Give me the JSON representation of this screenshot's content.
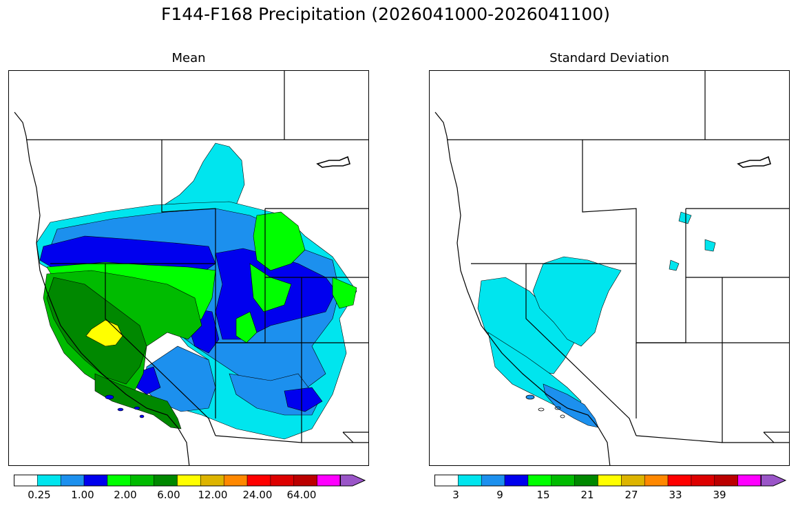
{
  "figure": {
    "title": "F144-F168 Precipitation (2026041000-2026041100)"
  },
  "panels": [
    {
      "title": "Mean",
      "colorbar": {
        "colors": [
          "#ffffff",
          "#00e5ee",
          "#1c90ee",
          "#0000ee",
          "#00ff00",
          "#00bb00",
          "#008800",
          "#ffff00",
          "#ddb400",
          "#ff8800",
          "#ff0000",
          "#dd0000",
          "#bb0000",
          "#ff00ff",
          "#9a55c8"
        ],
        "tick_labels": [
          "0.25",
          "1.00",
          "2.00",
          "6.00",
          "12.00",
          "24.00",
          "64.00"
        ]
      }
    },
    {
      "title": "Standard Deviation",
      "colorbar": {
        "colors": [
          "#ffffff",
          "#00e5ee",
          "#1c90ee",
          "#0000ee",
          "#00ff00",
          "#00bb00",
          "#008800",
          "#ffff00",
          "#ddb400",
          "#ff8800",
          "#ff0000",
          "#dd0000",
          "#bb0000",
          "#ff00ff",
          "#9a55c8"
        ],
        "tick_labels": [
          "3",
          "9",
          "15",
          "21",
          "27",
          "33",
          "39"
        ]
      }
    }
  ]
}
